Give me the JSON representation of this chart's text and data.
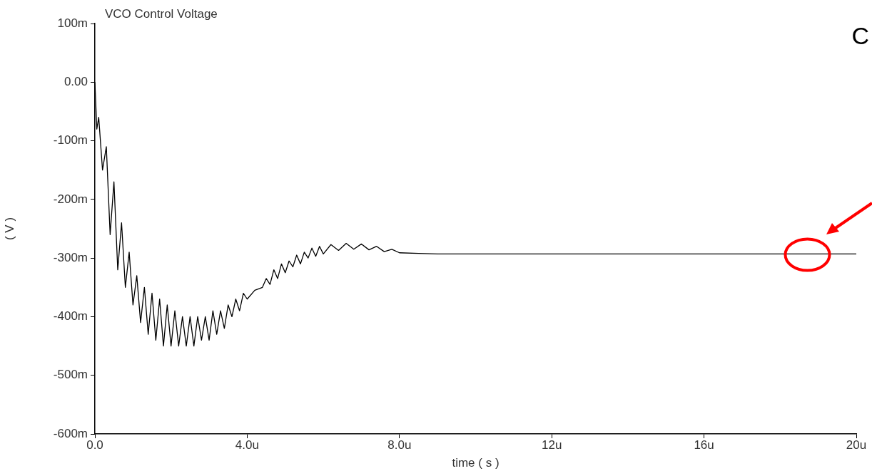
{
  "chart_data": {
    "type": "line",
    "title": "VCO Control Voltage",
    "xlabel": "time ( s )",
    "ylabel": "( V )",
    "x": [
      0,
      0.05,
      0.1,
      0.2,
      0.3,
      0.4,
      0.5,
      0.6,
      0.7,
      0.8,
      0.9,
      1,
      1.1,
      1.2,
      1.3,
      1.4,
      1.5,
      1.6,
      1.7,
      1.8,
      1.9,
      2,
      2.1,
      2.2,
      2.3,
      2.4,
      2.5,
      2.6,
      2.7,
      2.8,
      2.9,
      3,
      3.1,
      3.2,
      3.3,
      3.4,
      3.5,
      3.6,
      3.7,
      3.8,
      3.9,
      4,
      4.2,
      4.4,
      4.5,
      4.6,
      4.7,
      4.8,
      4.9,
      5,
      5.1,
      5.2,
      5.3,
      5.4,
      5.5,
      5.6,
      5.7,
      5.8,
      5.9,
      6,
      6.2,
      6.4,
      6.6,
      6.8,
      7,
      7.2,
      7.4,
      7.6,
      7.8,
      8,
      8.5,
      9,
      20
    ],
    "series": [
      {
        "color": "#000000",
        "values": [
          0,
          -80,
          -60,
          -150,
          -110,
          -260,
          -170,
          -320,
          -240,
          -350,
          -290,
          -380,
          -330,
          -410,
          -350,
          -430,
          -360,
          -440,
          -370,
          -450,
          -380,
          -450,
          -390,
          -450,
          -400,
          -450,
          -400,
          -450,
          -400,
          -440,
          -400,
          -440,
          -390,
          -430,
          -390,
          -420,
          -380,
          -400,
          -370,
          -390,
          -360,
          -370,
          -355,
          -350,
          -335,
          -345,
          -320,
          -335,
          -310,
          -325,
          -305,
          -315,
          -295,
          -310,
          -290,
          -300,
          -283,
          -297,
          -280,
          -293,
          -277,
          -287,
          -275,
          -285,
          -276,
          -286,
          -280,
          -289,
          -285,
          -291,
          -292,
          -293,
          -293
        ]
      }
    ],
    "xlim": [
      0,
      20
    ],
    "xticks": [
      {
        "value": 0,
        "label": "0.0"
      },
      {
        "value": 4,
        "label": "4.0u"
      },
      {
        "value": 8,
        "label": "8.0u"
      },
      {
        "value": 12,
        "label": "12u"
      },
      {
        "value": 16,
        "label": "16u"
      },
      {
        "value": 20,
        "label": "20u"
      }
    ],
    "ylim": [
      -600,
      100
    ],
    "yticks": [
      {
        "value": -600,
        "label": "-600m"
      },
      {
        "value": -500,
        "label": "-500m"
      },
      {
        "value": -400,
        "label": "-400m"
      },
      {
        "value": -300,
        "label": "-300m"
      },
      {
        "value": -200,
        "label": "-200m"
      },
      {
        "value": -100,
        "label": "-100m"
      },
      {
        "value": 0,
        "label": "0.00"
      },
      {
        "value": 100,
        "label": "100m"
      }
    ],
    "grid": false,
    "legend": false,
    "marker": "none",
    "line_style": "solid",
    "annotations": [
      "C"
    ]
  }
}
